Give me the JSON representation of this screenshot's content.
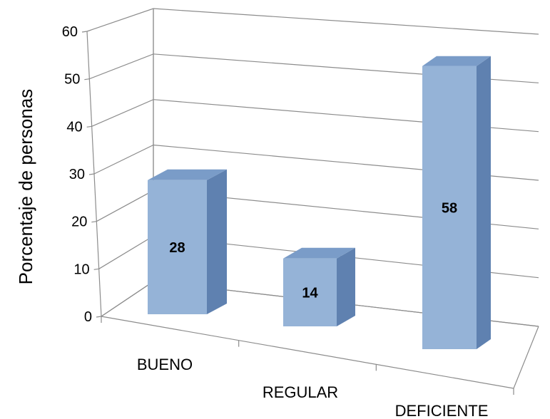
{
  "chart_data": {
    "type": "bar",
    "title": "",
    "xlabel": "",
    "ylabel": "Porcentaje de personas",
    "categories": [
      "BUENO",
      "REGULAR",
      "DEFICIENTE"
    ],
    "values": [
      28,
      14,
      58
    ],
    "data_labels": [
      "28",
      "14",
      "58"
    ],
    "ylim": [
      0,
      60
    ],
    "yticks": [
      "0",
      "10",
      "20",
      "30",
      "40",
      "50",
      "60"
    ],
    "grid": true,
    "legend": "none",
    "style": "3d-column",
    "colors": {
      "bar_front": "#95B3D7",
      "bar_side": "#5F81B0",
      "bar_top": "#7A9CC8",
      "gridline": "#8C8C8C"
    }
  }
}
